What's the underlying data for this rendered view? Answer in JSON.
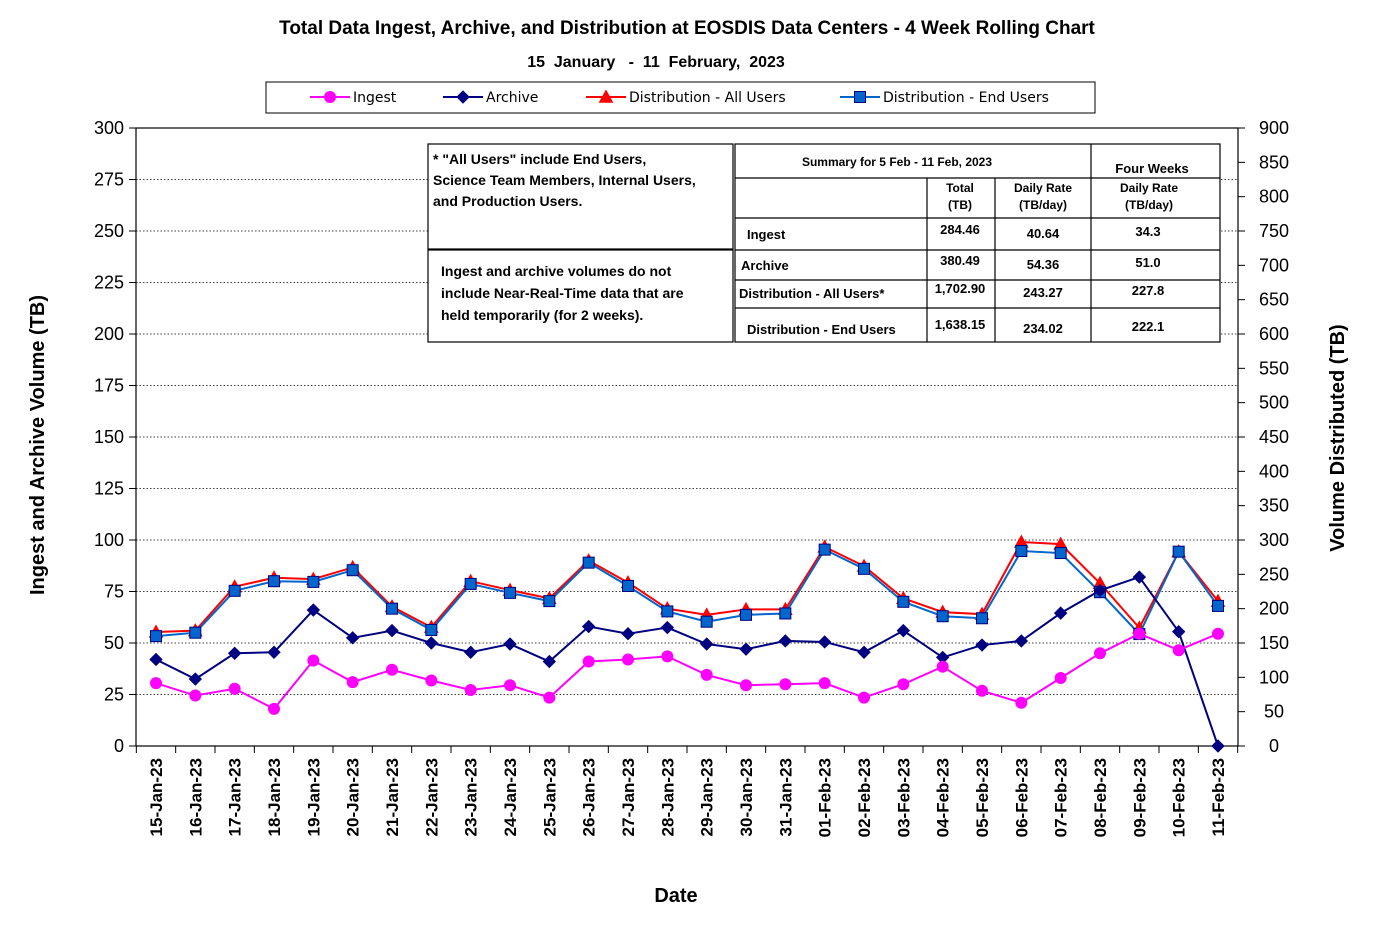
{
  "chart_data": {
    "type": "line",
    "title": "Total Data Ingest, Archive, and  Distribution at EOSDIS Data Centers - 4 Week Rolling Chart",
    "subtitle": "15  January   -  11  February,  2023",
    "xlabel": "Date",
    "ylabel_left": "Ingest and Archive Volume (TB)",
    "ylabel_right": "Volume Distributed (TB)",
    "ylim_left": [
      0,
      300
    ],
    "ylim_right": [
      0,
      900
    ],
    "yticks_left": [
      "0",
      "25",
      "50",
      "75",
      "100",
      "125",
      "150",
      "175",
      "200",
      "225",
      "250",
      "275",
      "300"
    ],
    "yticks_right": [
      "0",
      "50",
      "100",
      "150",
      "200",
      "250",
      "300",
      "350",
      "400",
      "450",
      "500",
      "550",
      "600",
      "650",
      "700",
      "750",
      "800",
      "850",
      "900"
    ],
    "grid": "horizontal dotted",
    "legend_position": "top",
    "categories": [
      "15-Jan-23",
      "16-Jan-23",
      "17-Jan-23",
      "18-Jan-23",
      "19-Jan-23",
      "20-Jan-23",
      "21-Jan-23",
      "22-Jan-23",
      "23-Jan-23",
      "24-Jan-23",
      "25-Jan-23",
      "26-Jan-23",
      "27-Jan-23",
      "28-Jan-23",
      "29-Jan-23",
      "30-Jan-23",
      "31-Jan-23",
      "01-Feb-23",
      "02-Feb-23",
      "03-Feb-23",
      "04-Feb-23",
      "05-Feb-23",
      "06-Feb-23",
      "07-Feb-23",
      "08-Feb-23",
      "09-Feb-23",
      "10-Feb-23",
      "11-Feb-23"
    ],
    "series": [
      {
        "name": "Ingest",
        "axis": "left",
        "color": "#ff00ff",
        "marker": "circle",
        "values": [
          30.5,
          24.5,
          27.8,
          18,
          41.5,
          31,
          37,
          31.8,
          27.2,
          29.5,
          23.5,
          41,
          42,
          43.5,
          34.5,
          29.5,
          30,
          30.5,
          23.5,
          30,
          38.5,
          26.8,
          21,
          33,
          45,
          54.5,
          46.5,
          54.5
        ]
      },
      {
        "name": "Archive",
        "axis": "left",
        "color": "#000080",
        "marker": "diamond",
        "values": [
          42,
          32.5,
          45,
          45.5,
          66,
          52.5,
          56,
          50,
          45.5,
          49.5,
          41,
          58,
          54.5,
          57.5,
          49.5,
          47,
          51,
          50.5,
          45.5,
          56,
          43,
          49,
          51,
          64.5,
          75.5,
          82,
          55.5,
          0
        ]
      },
      {
        "name": "Distribution - All Users",
        "axis": "right",
        "color": "#ff0000",
        "marker": "triangle",
        "values": [
          166,
          168,
          232,
          245,
          243,
          260,
          203,
          173,
          240,
          227,
          215,
          270,
          238,
          200,
          191,
          199,
          199,
          290,
          262,
          215,
          195,
          192,
          297,
          294,
          237,
          172,
          283,
          211
        ]
      },
      {
        "name": "Distribution - End Users",
        "axis": "right",
        "color": "#0066cc",
        "marker": "square",
        "values": [
          160,
          165,
          226,
          240,
          239,
          256,
          200,
          169,
          236,
          223,
          211,
          267,
          233,
          196,
          181,
          191,
          193,
          286,
          258,
          210,
          189,
          186,
          284,
          281,
          224,
          163,
          283,
          204
        ]
      }
    ],
    "annotations": {
      "note_all_users": [
        " * \"All Users\" include End Users,",
        "Science Team Members,  Internal Users,",
        "and Production Users."
      ],
      "note_nrt": [
        "Ingest and archive volumes do not",
        "include Near-Real-Time data that are",
        "held temporarily (for 2 weeks)."
      ],
      "summary_table": {
        "header_summary": "Summary  for  5  Feb   -  11  Feb,  2023",
        "header_four_weeks": "Four Weeks",
        "col_total": [
          "Total",
          "(TB)"
        ],
        "col_daily": [
          "Daily Rate",
          "(TB/day)"
        ],
        "col_four_daily": [
          "Daily Rate",
          "(TB/day)"
        ],
        "rows": [
          {
            "label": "Ingest",
            "total": "284.46",
            "daily": "40.64",
            "four_weeks": "34.3"
          },
          {
            "label": "Archive",
            "total": "380.49",
            "daily": "54.36",
            "four_weeks": "51.0"
          },
          {
            "label": "Distribution - All Users*",
            "total": "1,702.90",
            "daily": "243.27",
            "four_weeks": "227.8"
          },
          {
            "label": "Distribution - End Users",
            "total": "1,638.15",
            "daily": "234.02",
            "four_weeks": "222.1"
          }
        ]
      }
    }
  }
}
